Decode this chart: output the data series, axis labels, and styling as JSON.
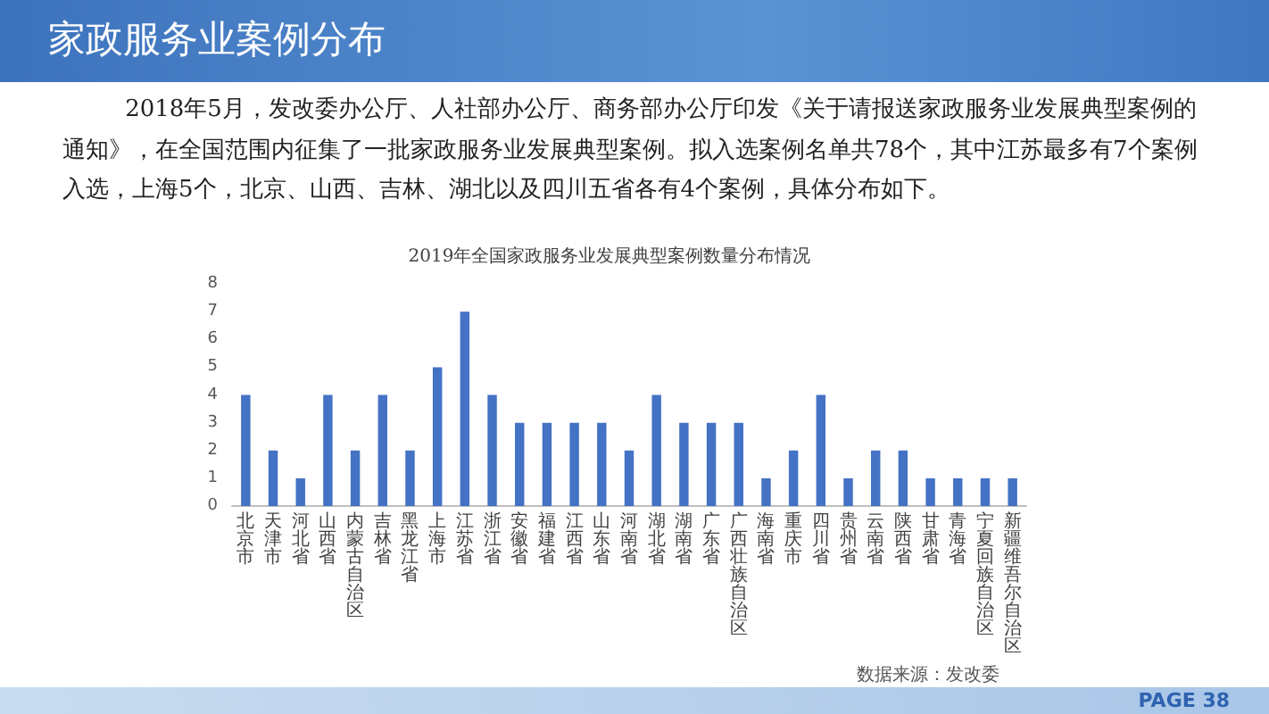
{
  "chart_data": {
    "type": "bar",
    "title": "家政服务业案例分布",
    "subtitle": "2019年全国家政服务业发展典型案例数量分布情况",
    "categories": [
      "北京市",
      "天津市",
      "河北省",
      "山西省",
      "内蒙古自治区",
      "吉林省",
      "黑龙江省",
      "上海市",
      "江苏省",
      "浙江省",
      "安徽省",
      "福建省",
      "江西省",
      "山东省",
      "河南省",
      "湖北省",
      "湖南省",
      "广东省",
      "广西壮族自治区",
      "海南省",
      "重庆市",
      "四川省",
      "贵州省",
      "云南省",
      "陕西省",
      "甘肃省",
      "青海省",
      "宁夏回族自治区",
      "新疆维吾尔自治区"
    ],
    "values": [
      4,
      2,
      1,
      4,
      2,
      4,
      2,
      5,
      7,
      4,
      3,
      3,
      3,
      3,
      2,
      4,
      3,
      3,
      3,
      1,
      2,
      4,
      1,
      2,
      2,
      1,
      1,
      1,
      1
    ],
    "color": "#4472c4",
    "ylim": [
      0,
      8
    ],
    "yticks": [
      0,
      1,
      2,
      3,
      4,
      5,
      6,
      7,
      8
    ],
    "annotations": [
      "2018年5月，发改委办公厅、人社部办公厅、商务部办公厅印发《关于请报送家政服务业发展典型案例的通知》，在全国范围内征集了一批家政服务业发展典型案例。拟入选案例名单共78个，其中江苏最多有7个案例入选，上海5个，北京、山西、吉林、湖北以及四川五省各有4个案例，具体分布如下。",
      "数据来源：发改委",
      "PAGE 38"
    ]
  }
}
